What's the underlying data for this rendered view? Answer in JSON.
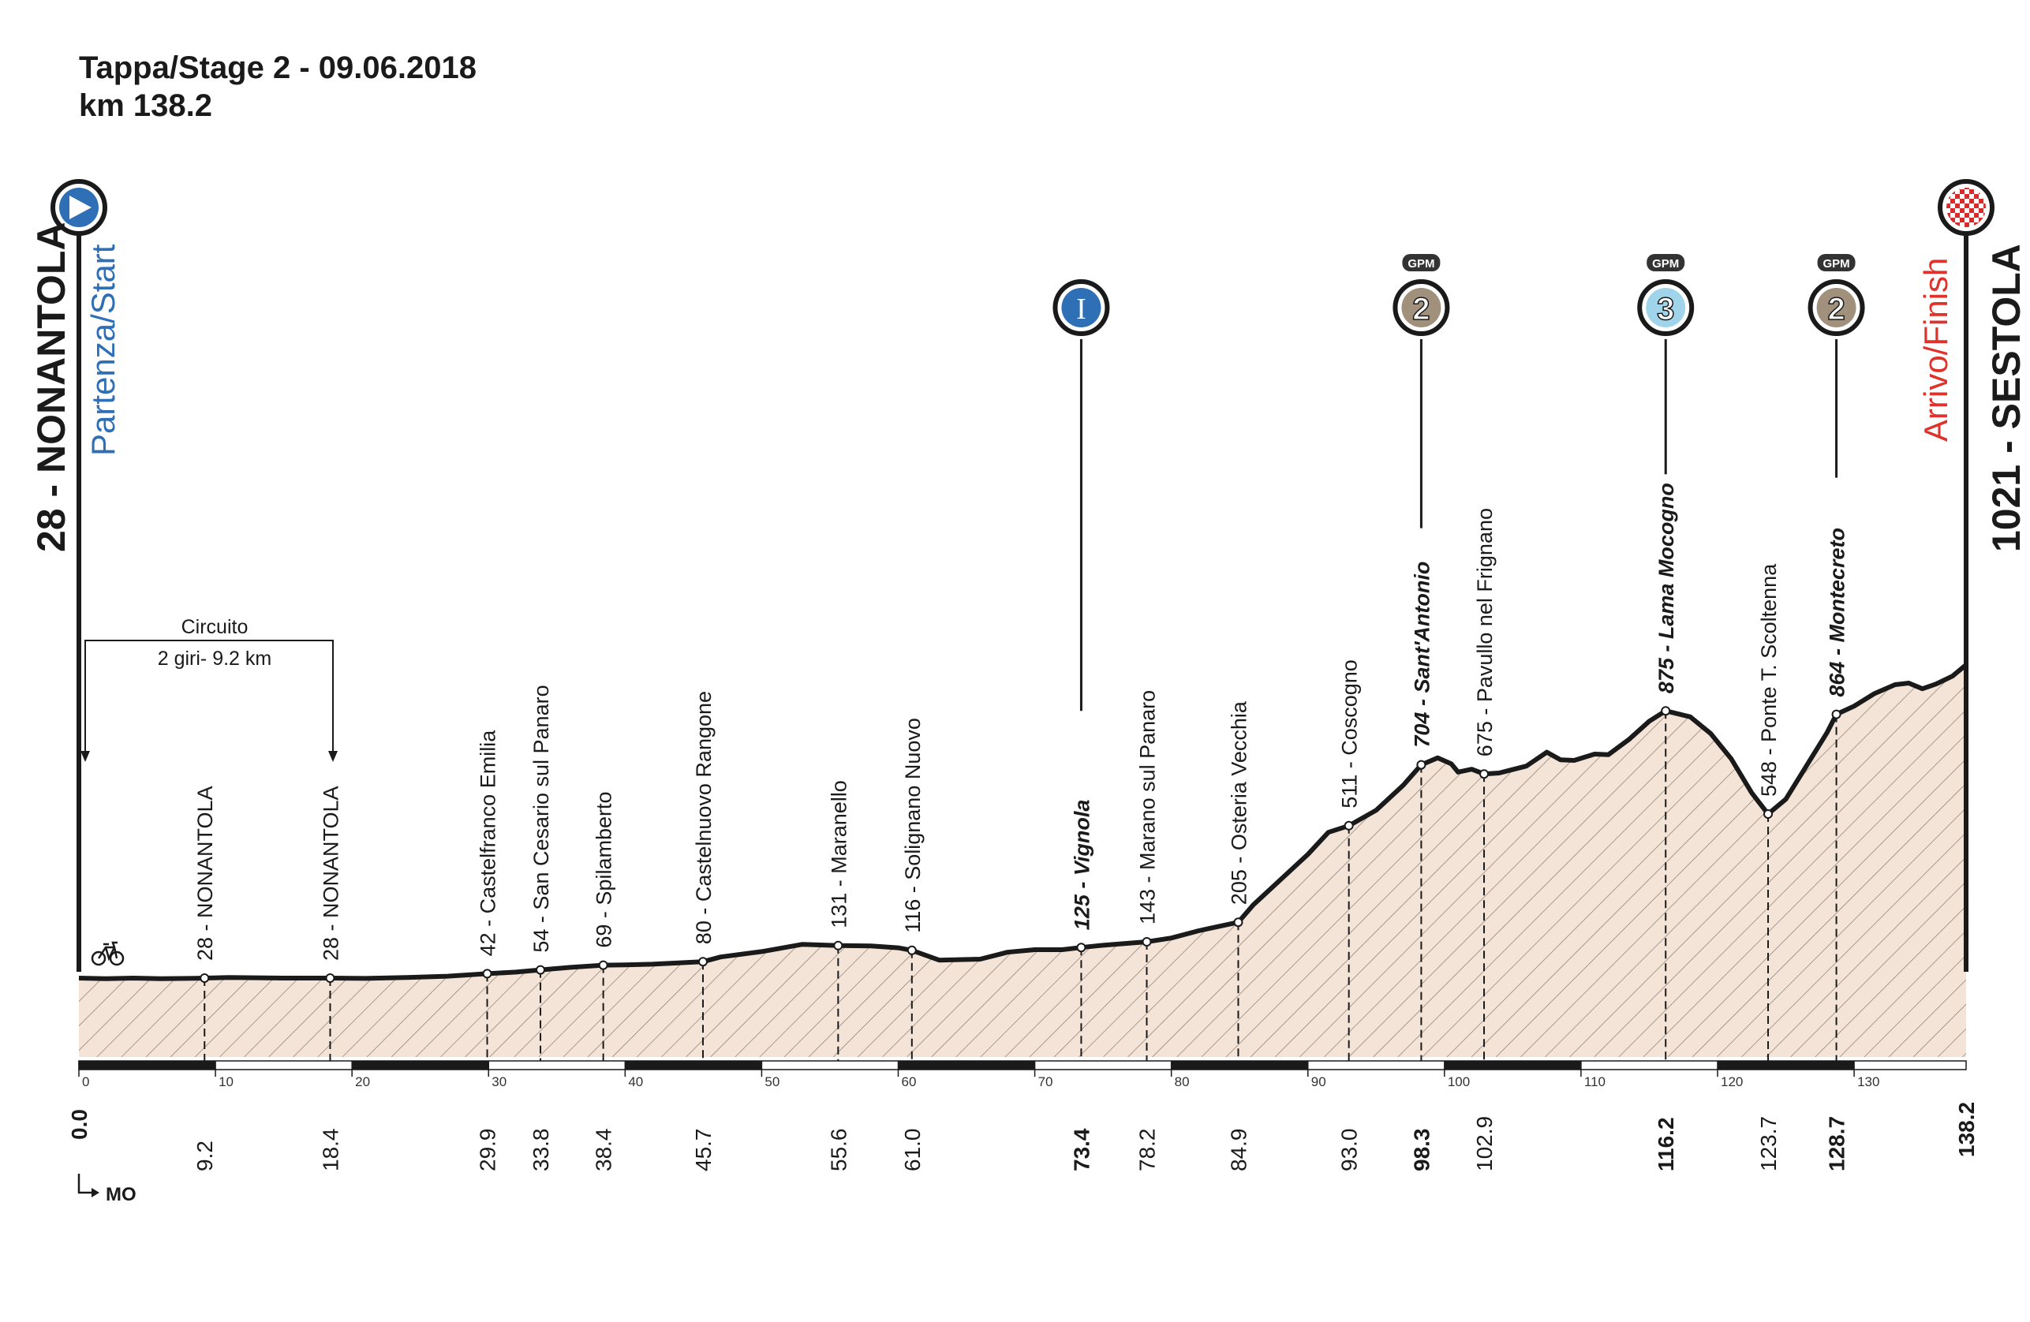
{
  "header": {
    "stage_line": "Tappa/Stage 2 - 09.06.2018",
    "distance_line": "km 138.2"
  },
  "start": {
    "name": "28 - NONANTOLA",
    "sub": "Partenza/Start"
  },
  "finish": {
    "name": "1021 - SESTOLA",
    "sub": "Arrivo/Finish"
  },
  "circuit": {
    "title": "Circuito",
    "detail": "2 giri- 9.2 km"
  },
  "province_marker": "MO",
  "colors": {
    "profile_fill": "#f3e4d7",
    "profile_line": "#1a1a1a",
    "start_blue": "#2f6fb5",
    "finish_red": "#e0322b",
    "gpm2_brown": "#a0907c",
    "gpm3_blue": "#9fd4ea",
    "sprint_blue": "#2f6fb5"
  },
  "chart_data": {
    "type": "area",
    "title": "Tappa/Stage 2 - 09.06.2018",
    "xlabel": "",
    "ylabel": "",
    "xlim": [
      0,
      138.2
    ],
    "x_ticks": [
      0,
      10,
      20,
      30,
      40,
      50,
      60,
      70,
      80,
      90,
      100,
      110,
      120,
      130
    ],
    "profile": [
      [
        0,
        28
      ],
      [
        2,
        26
      ],
      [
        4,
        28
      ],
      [
        6,
        26
      ],
      [
        8,
        27
      ],
      [
        9.2,
        28
      ],
      [
        11,
        30
      ],
      [
        13,
        29
      ],
      [
        15,
        28
      ],
      [
        18.4,
        28
      ],
      [
        21,
        27
      ],
      [
        24,
        30
      ],
      [
        27,
        34
      ],
      [
        29.9,
        42
      ],
      [
        32,
        47
      ],
      [
        33.8,
        54
      ],
      [
        36,
        62
      ],
      [
        38.4,
        69
      ],
      [
        40,
        70
      ],
      [
        42,
        72
      ],
      [
        45.7,
        80
      ],
      [
        47,
        95
      ],
      [
        50,
        112
      ],
      [
        53,
        135
      ],
      [
        55.6,
        131
      ],
      [
        58,
        130
      ],
      [
        60,
        124
      ],
      [
        61,
        116
      ],
      [
        63,
        85
      ],
      [
        66,
        88
      ],
      [
        68,
        110
      ],
      [
        70,
        118
      ],
      [
        72,
        118
      ],
      [
        73.4,
        125
      ],
      [
        75,
        132
      ],
      [
        78.2,
        143
      ],
      [
        80,
        155
      ],
      [
        82,
        178
      ],
      [
        84.9,
        205
      ],
      [
        86,
        260
      ],
      [
        88,
        340
      ],
      [
        90,
        420
      ],
      [
        91.5,
        490
      ],
      [
        93,
        511
      ],
      [
        95,
        560
      ],
      [
        97,
        640
      ],
      [
        98.3,
        704
      ],
      [
        99.5,
        726
      ],
      [
        100.5,
        707
      ],
      [
        101,
        681
      ],
      [
        102,
        690
      ],
      [
        102.9,
        675
      ],
      [
        104,
        678
      ],
      [
        106,
        700
      ],
      [
        107.5,
        744
      ],
      [
        108.5,
        720
      ],
      [
        109.5,
        718
      ],
      [
        111,
        738
      ],
      [
        112,
        736
      ],
      [
        113.5,
        784
      ],
      [
        115,
        842
      ],
      [
        116.2,
        875
      ],
      [
        118,
        856
      ],
      [
        119.5,
        803
      ],
      [
        121,
        723
      ],
      [
        122.5,
        615
      ],
      [
        123.7,
        548
      ],
      [
        125,
        595
      ],
      [
        126.5,
        700
      ],
      [
        128,
        805
      ],
      [
        128.7,
        864
      ],
      [
        130,
        890
      ],
      [
        131.5,
        930
      ],
      [
        133,
        958
      ],
      [
        134,
        963
      ],
      [
        135,
        945
      ],
      [
        136,
        960
      ],
      [
        137.2,
        985
      ],
      [
        138.2,
        1021
      ]
    ],
    "waypoints": [
      {
        "km": 9.2,
        "km_label": "9.2",
        "alt": 28,
        "label": "28 - NONANTOLA",
        "bold": false
      },
      {
        "km": 18.4,
        "km_label": "18.4",
        "alt": 28,
        "label": "28 - NONANTOLA",
        "bold": false
      },
      {
        "km": 29.9,
        "km_label": "29.9",
        "alt": 42,
        "label": "42 - Castelfranco Emilia",
        "bold": false
      },
      {
        "km": 33.8,
        "km_label": "33.8",
        "alt": 54,
        "label": "54 - San Cesario sul Panaro",
        "bold": false
      },
      {
        "km": 38.4,
        "km_label": "38.4",
        "alt": 69,
        "label": "69 - Spilamberto",
        "bold": false
      },
      {
        "km": 45.7,
        "km_label": "45.7",
        "alt": 80,
        "label": "80 - Castelnuovo Rangone",
        "bold": false
      },
      {
        "km": 55.6,
        "km_label": "55.6",
        "alt": 131,
        "label": "131 - Maranello",
        "bold": false
      },
      {
        "km": 61.0,
        "km_label": "61.0",
        "alt": 116,
        "label": "116 - Solignano Nuovo",
        "bold": false
      },
      {
        "km": 73.4,
        "km_label": "73.4",
        "alt": 125,
        "label": "125 - Vignola",
        "bold": true
      },
      {
        "km": 78.2,
        "km_label": "78.2",
        "alt": 143,
        "label": "143 - Marano sul Panaro",
        "bold": false
      },
      {
        "km": 84.9,
        "km_label": "84.9",
        "alt": 205,
        "label": "205 - Osteria Vecchia",
        "bold": false
      },
      {
        "km": 93.0,
        "km_label": "93.0",
        "alt": 511,
        "label": "511 - Coscogno",
        "bold": false
      },
      {
        "km": 98.3,
        "km_label": "98.3",
        "alt": 704,
        "label": "704 - Sant'Antonio",
        "bold": true
      },
      {
        "km": 102.9,
        "km_label": "102.9",
        "alt": 675,
        "label": "675 - Pavullo nel Frignano",
        "bold": false
      },
      {
        "km": 116.2,
        "km_label": "116.2",
        "alt": 875,
        "label": "875 - Lama Mocogno",
        "bold": true
      },
      {
        "km": 123.7,
        "km_label": "123.7",
        "alt": 548,
        "label": "548 - Ponte T. Scoltenna",
        "bold": false
      },
      {
        "km": 128.7,
        "km_label": "128.7",
        "alt": 864,
        "label": "864 - Montecreto",
        "bold": true
      }
    ],
    "endpoints": {
      "start_km": "0.0",
      "finish_km": "138.2"
    },
    "climbs": [
      {
        "km": 98.3,
        "tag": "GPM",
        "category": "2"
      },
      {
        "km": 116.2,
        "tag": "GPM",
        "category": "3"
      },
      {
        "km": 128.7,
        "tag": "GPM",
        "category": "2"
      }
    ],
    "sprints": [
      {
        "km": 73.4,
        "symbol": "I"
      }
    ]
  }
}
